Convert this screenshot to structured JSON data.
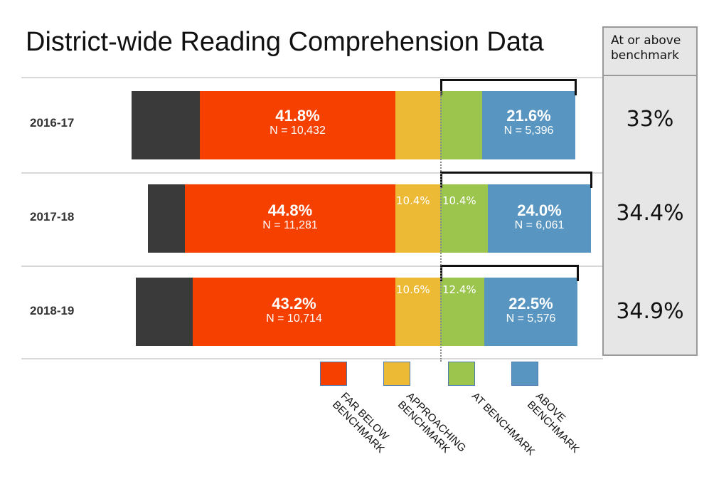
{
  "title": "District-wide Reading Comprehension Data",
  "side_panel": {
    "header": [
      "At or above",
      "benchmark"
    ],
    "values": [
      "33%",
      "34.4%",
      "34.9%"
    ]
  },
  "colors": {
    "unlabeled": "#3a3a3a",
    "far_below": "#f54000",
    "approaching": "#ecba35",
    "at": "#9cc54e",
    "above": "#5895c0",
    "panel": "#e6e6e6"
  },
  "chart_data": {
    "type": "bar",
    "orientation": "horizontal",
    "stacked": true,
    "title": "District-wide Reading Comprehension Data",
    "categories": [
      "2016-17",
      "2017-18",
      "2018-19"
    ],
    "legend": [
      "FAR BELOW BENCHMARK",
      "APPROACHING BENCHMARK",
      "AT BENCHMARK",
      "ABOVE BENCHMARK"
    ],
    "legend_position": "bottom",
    "rows": [
      {
        "year": "2016-17",
        "far_below": {
          "pct": "41.8%",
          "n": "N = 10,432"
        },
        "approaching": {
          "pct": ""
        },
        "at": {
          "pct": ""
        },
        "above": {
          "pct": "21.6%",
          "n": "N = 5,396"
        }
      },
      {
        "year": "2017-18",
        "far_below": {
          "pct": "44.8%",
          "n": "N = 11,281"
        },
        "approaching": {
          "pct": "10.4%"
        },
        "at": {
          "pct": "10.4%"
        },
        "above": {
          "pct": "24.0%",
          "n": "N = 6,061"
        }
      },
      {
        "year": "2018-19",
        "far_below": {
          "pct": "43.2%",
          "n": "N = 10,714"
        },
        "approaching": {
          "pct": "10.6%"
        },
        "at": {
          "pct": "12.4%"
        },
        "above": {
          "pct": "22.5%",
          "n": "N = 5,576"
        }
      }
    ]
  }
}
